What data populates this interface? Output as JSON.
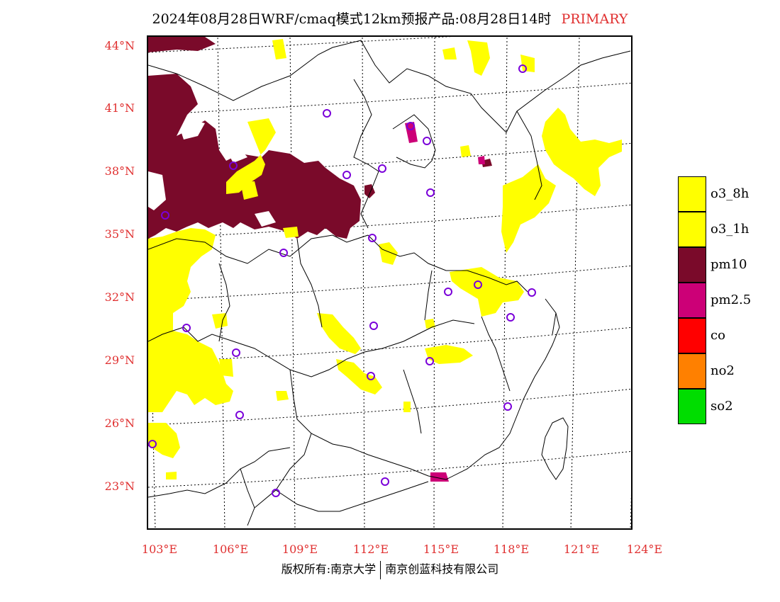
{
  "title": {
    "main": "2024年08月28日WRF/cmaq模式12km预报产品:08月28日14时",
    "tag": "PRIMARY"
  },
  "axes": {
    "lat_labels": [
      "44°N",
      "41°N",
      "38°N",
      "35°N",
      "32°N",
      "29°N",
      "26°N",
      "23°N"
    ],
    "lon_labels": [
      "103°E",
      "106°E",
      "109°E",
      "112°E",
      "115°E",
      "118°E",
      "121°E",
      "124°E"
    ]
  },
  "legend": [
    {
      "label": "o3_8h",
      "color": "#ffff00"
    },
    {
      "label": "o3_1h",
      "color": "#ffff00"
    },
    {
      "label": "pm10",
      "color": "#7a0a2a"
    },
    {
      "label": "pm2.5",
      "color": "#cc0077"
    },
    {
      "label": "co",
      "color": "#ff0000"
    },
    {
      "label": "no2",
      "color": "#ff8000"
    },
    {
      "label": "so2",
      "color": "#00dd00"
    }
  ],
  "footer": {
    "left": "版权所有:南京大学",
    "right": "南京创蓝科技有限公司"
  }
}
